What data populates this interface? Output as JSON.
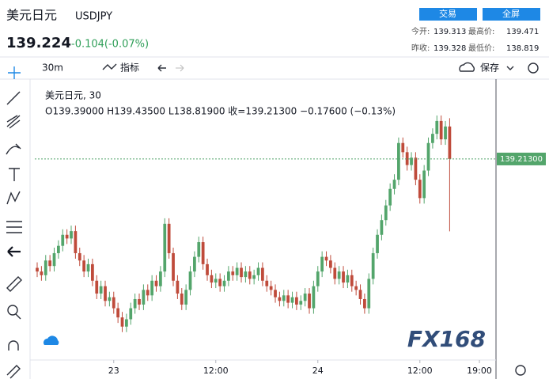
{
  "header": {
    "name": "美元日元",
    "symbol": "USDJPY",
    "price": "139.224",
    "change": "-0.104(-0.07%)",
    "buttons": [
      "交易",
      "全屏"
    ],
    "stats": [
      [
        "今开:",
        "139.313",
        "最高价:",
        "139.471"
      ],
      [
        "昨收:",
        "139.328",
        "最低价:",
        "138.819"
      ]
    ]
  },
  "toolbar": {
    "interval": "30m",
    "indicators": "指标",
    "save": "保存"
  },
  "watermark": "FX168",
  "chart_data": {
    "type": "candlestick",
    "legend_title": "美元日元, 30",
    "ohlc_text": "O139.39000  H139.43500  L138.81900  收=139.21300  −0.17600 (−0.13%)",
    "up_color": "#53a56b",
    "down_color": "#bf4b3b",
    "xlim": [
      -0.56,
      107.9
    ],
    "ylim": [
      138.118,
      139.648
    ],
    "xticks": [
      {
        "value": 18,
        "label": "23"
      },
      {
        "value": 42,
        "label": "12:00"
      },
      {
        "value": 66,
        "label": "24"
      },
      {
        "value": 90,
        "label": "12:00"
      },
      {
        "value": 104,
        "label": "19:00"
      }
    ],
    "last_price": {
      "value": 139.213,
      "label": "139.21300"
    },
    "open": [
      138.62,
      138.6,
      138.58,
      138.66,
      138.63,
      138.7,
      138.74,
      138.8,
      138.78,
      138.82,
      138.7,
      138.66,
      138.6,
      138.64,
      138.55,
      138.48,
      138.52,
      138.44,
      138.46,
      138.4,
      138.35,
      138.3,
      138.34,
      138.4,
      138.45,
      138.42,
      138.5,
      138.47,
      138.55,
      138.52,
      138.6,
      138.86,
      138.7,
      138.55,
      138.48,
      138.42,
      138.5,
      138.6,
      138.68,
      138.76,
      138.64,
      138.58,
      138.54,
      138.56,
      138.52,
      138.55,
      138.6,
      138.58,
      138.62,
      138.57,
      138.6,
      138.56,
      138.58,
      138.62,
      138.55,
      138.52,
      138.5,
      138.46,
      138.44,
      138.47,
      138.43,
      138.46,
      138.42,
      138.44,
      138.48,
      138.4,
      138.52,
      138.6,
      138.68,
      138.66,
      138.62,
      138.56,
      138.6,
      138.54,
      138.58,
      138.52,
      138.5,
      138.45,
      138.4,
      138.56,
      138.7,
      138.8,
      138.88,
      138.96,
      139.05,
      139.1,
      139.3,
      139.25,
      139.18,
      139.22,
      139.1,
      139.0,
      139.15,
      139.3,
      139.35,
      139.42,
      139.32,
      139.39
    ],
    "high": [
      138.65,
      138.63,
      138.69,
      138.69,
      138.73,
      138.77,
      138.83,
      138.83,
      138.85,
      138.85,
      138.73,
      138.69,
      138.67,
      138.67,
      138.58,
      138.55,
      138.55,
      138.49,
      138.49,
      138.43,
      138.38,
      138.37,
      138.43,
      138.48,
      138.48,
      138.53,
      138.53,
      138.58,
      138.58,
      138.63,
      138.89,
      138.89,
      138.73,
      138.58,
      138.51,
      138.53,
      138.63,
      138.71,
      138.79,
      138.79,
      138.67,
      138.61,
      138.59,
      138.59,
      138.58,
      138.63,
      138.63,
      138.65,
      138.65,
      138.63,
      138.63,
      138.61,
      138.65,
      138.65,
      138.58,
      138.55,
      138.53,
      138.49,
      138.5,
      138.5,
      138.49,
      138.49,
      138.47,
      138.51,
      138.51,
      138.55,
      138.63,
      138.71,
      138.71,
      138.69,
      138.65,
      138.63,
      138.63,
      138.61,
      138.61,
      138.55,
      138.53,
      138.48,
      138.59,
      138.73,
      138.83,
      138.91,
      138.99,
      139.08,
      139.13,
      139.33,
      139.33,
      139.28,
      139.25,
      139.25,
      139.13,
      139.18,
      139.33,
      139.38,
      139.45,
      139.45,
      139.42,
      139.435
    ],
    "low": [
      138.57,
      138.55,
      138.55,
      138.6,
      138.6,
      138.67,
      138.71,
      138.75,
      138.75,
      138.67,
      138.63,
      138.57,
      138.57,
      138.52,
      138.45,
      138.45,
      138.41,
      138.41,
      138.37,
      138.32,
      138.27,
      138.27,
      138.31,
      138.37,
      138.39,
      138.39,
      138.44,
      138.44,
      138.49,
      138.49,
      138.57,
      138.67,
      138.52,
      138.45,
      138.39,
      138.39,
      138.47,
      138.57,
      138.65,
      138.61,
      138.55,
      138.51,
      138.51,
      138.49,
      138.49,
      138.52,
      138.55,
      138.55,
      138.54,
      138.54,
      138.53,
      138.53,
      138.55,
      138.52,
      138.49,
      138.47,
      138.43,
      138.41,
      138.41,
      138.4,
      138.4,
      138.39,
      138.39,
      138.41,
      138.37,
      138.37,
      138.49,
      138.57,
      138.63,
      138.59,
      138.53,
      138.53,
      138.51,
      138.51,
      138.49,
      138.47,
      138.42,
      138.37,
      138.37,
      138.53,
      138.67,
      138.77,
      138.85,
      138.93,
      139.02,
      139.07,
      139.22,
      139.15,
      139.15,
      139.07,
      138.97,
      138.97,
      139.12,
      139.27,
      139.32,
      139.29,
      139.29,
      138.819
    ],
    "close": [
      138.6,
      138.58,
      138.66,
      138.63,
      138.7,
      138.74,
      138.8,
      138.78,
      138.82,
      138.7,
      138.66,
      138.6,
      138.64,
      138.55,
      138.48,
      138.52,
      138.44,
      138.46,
      138.4,
      138.35,
      138.3,
      138.34,
      138.4,
      138.45,
      138.42,
      138.5,
      138.47,
      138.55,
      138.52,
      138.6,
      138.86,
      138.7,
      138.55,
      138.48,
      138.42,
      138.5,
      138.6,
      138.68,
      138.76,
      138.64,
      138.58,
      138.54,
      138.56,
      138.52,
      138.55,
      138.6,
      138.58,
      138.62,
      138.57,
      138.6,
      138.56,
      138.58,
      138.62,
      138.55,
      138.52,
      138.5,
      138.46,
      138.44,
      138.47,
      138.43,
      138.46,
      138.42,
      138.44,
      138.48,
      138.4,
      138.52,
      138.6,
      138.68,
      138.66,
      138.62,
      138.56,
      138.6,
      138.54,
      138.58,
      138.52,
      138.5,
      138.45,
      138.4,
      138.56,
      138.7,
      138.8,
      138.88,
      138.96,
      139.05,
      139.1,
      139.3,
      139.25,
      139.18,
      139.22,
      139.1,
      139.0,
      139.15,
      139.3,
      139.35,
      139.42,
      139.32,
      139.39,
      139.213
    ]
  }
}
